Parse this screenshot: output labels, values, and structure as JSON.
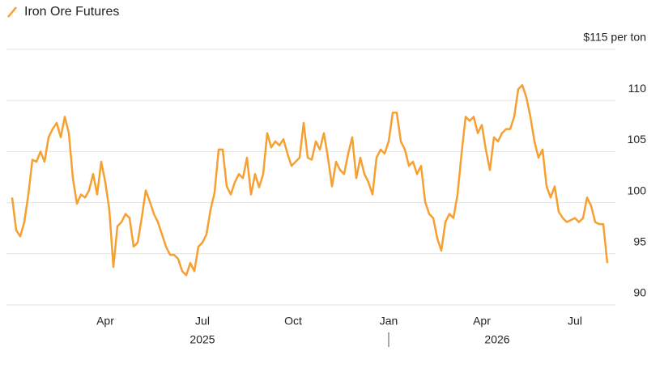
{
  "chart_data": {
    "type": "line",
    "series": [
      {
        "name": "Iron Ore Futures",
        "color": "#f5a030",
        "values": [
          100.5,
          97.3,
          96.7,
          98.1,
          100.8,
          104.2,
          104.0,
          105.0,
          104.0,
          106.4,
          107.2,
          107.8,
          106.4,
          108.4,
          106.8,
          102.4,
          99.9,
          100.8,
          100.5,
          101.2,
          102.8,
          100.8,
          104.0,
          102.0,
          99.3,
          93.7,
          97.7,
          98.1,
          98.9,
          98.5,
          95.7,
          96.1,
          98.5,
          101.2,
          100.1,
          98.9,
          98.1,
          96.9,
          95.7,
          94.9,
          94.9,
          94.5,
          93.3,
          92.9,
          94.1,
          93.3,
          95.7,
          96.1,
          96.9,
          99.3,
          101.0,
          105.2,
          105.2,
          101.6,
          100.8,
          102.0,
          102.8,
          102.4,
          104.4,
          100.8,
          102.8,
          101.5,
          102.8,
          106.8,
          105.4,
          106.0,
          105.6,
          106.2,
          104.8,
          103.6,
          104.0,
          104.4,
          107.8,
          104.4,
          104.2,
          106.0,
          105.2,
          106.8,
          104.4,
          101.6,
          104.0,
          103.2,
          102.8,
          104.8,
          106.4,
          102.4,
          104.4,
          102.8,
          102.0,
          100.8,
          104.4,
          105.2,
          104.8,
          106.0,
          108.8,
          108.8,
          106.0,
          105.2,
          103.6,
          104.0,
          102.8,
          103.6,
          100.1,
          98.9,
          98.5,
          96.5,
          95.3,
          98.1,
          98.9,
          98.5,
          100.8,
          104.8,
          108.4,
          108.0,
          108.4,
          106.8,
          107.6,
          105.2,
          103.2,
          106.4,
          106.0,
          106.8,
          107.2,
          107.2,
          108.4,
          111.1,
          111.5,
          110.3,
          108.4,
          106.0,
          104.4,
          105.2,
          101.6,
          100.5,
          101.6,
          99.1,
          98.5,
          98.1,
          98.3,
          98.5,
          98.1,
          98.5,
          100.5,
          99.7,
          98.1,
          97.9,
          97.9,
          94.1
        ]
      }
    ],
    "xlim": [
      -1.4,
      149
    ],
    "xticks": [
      {
        "value": 23,
        "label": "Apr"
      },
      {
        "value": 47,
        "label": "Jul"
      },
      {
        "value": 69.4,
        "label": "Oct"
      },
      {
        "value": 93,
        "label": "Jan"
      },
      {
        "value": 116,
        "label": "Apr"
      },
      {
        "value": 139,
        "label": "Jul"
      }
    ],
    "year_labels": [
      {
        "value": 47,
        "label": "2025"
      },
      {
        "value": 119.8,
        "label": "2026"
      }
    ],
    "ylim": [
      90,
      115
    ],
    "yticks": [
      90,
      95,
      100,
      105,
      110,
      {
        "value": 115,
        "label": "$115 per ton"
      }
    ],
    "grid": true
  }
}
